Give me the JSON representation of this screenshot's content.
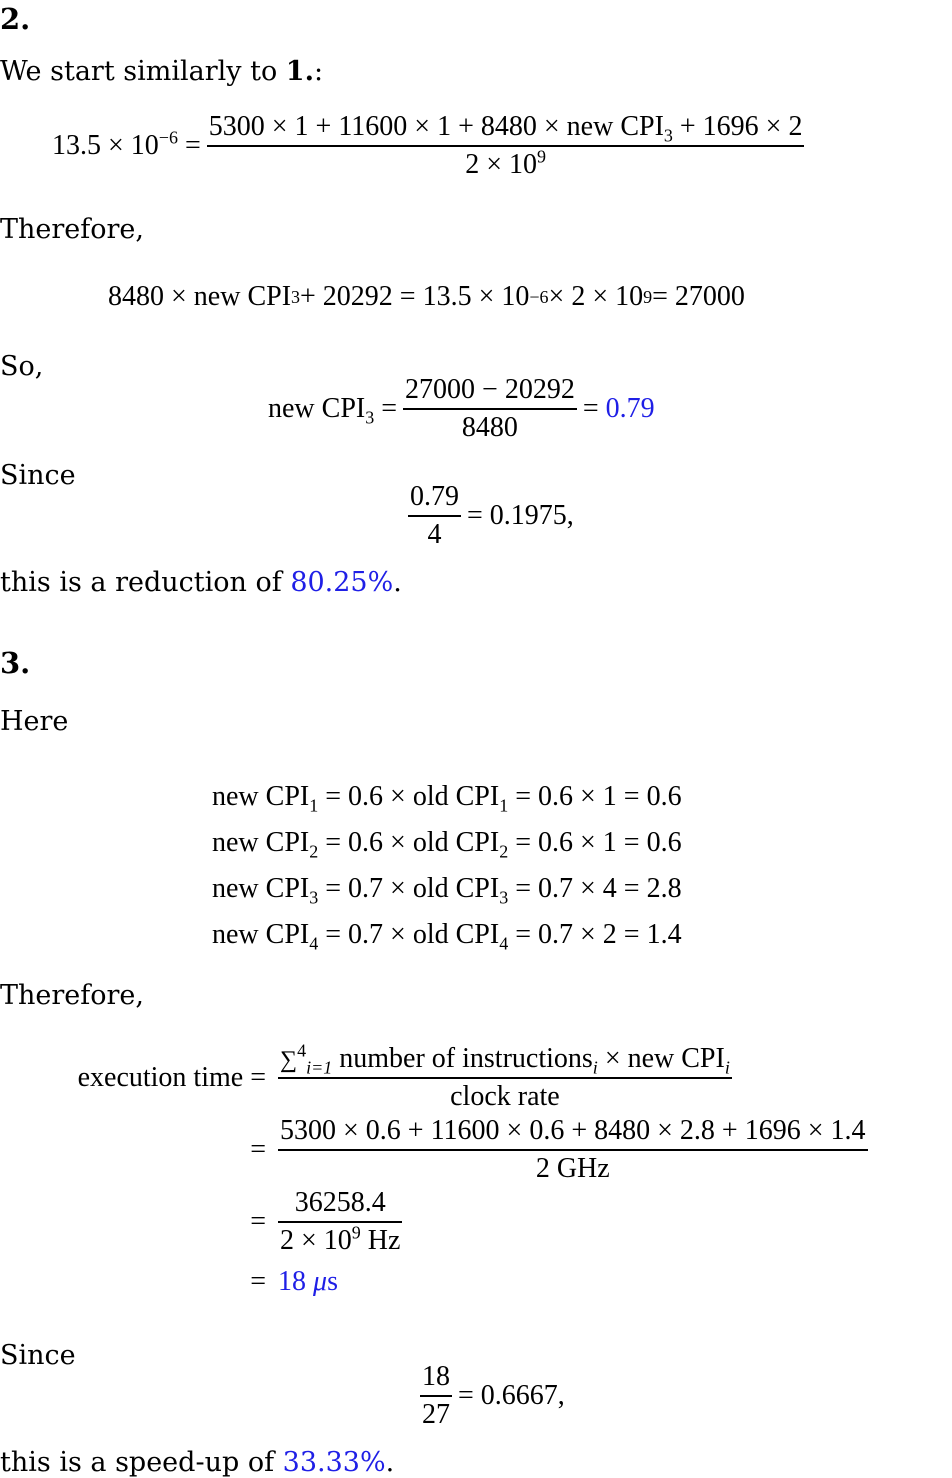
{
  "sections": [
    {
      "heading": "2.",
      "intro": "We start similarly to",
      "intro_ref": "1.",
      "intro_tail": ":",
      "eq1_lhs": "13.5 × 10",
      "eq1_lhs_exp": "−6",
      "eq1_num": "5300 × 1 + 11600 × 1 + 8480 × new CPI",
      "eq1_num_sub": "3",
      "eq1_num_tail": " + 1696 × 2",
      "eq1_den": "2 × 10",
      "eq1_den_exp": "9",
      "therefore": "Therefore,",
      "eq2_a": "8480 × new CPI",
      "eq2_a_sub": "3",
      "eq2_b": " + 20292 = 13.5 × 10",
      "eq2_b_exp": "−6",
      "eq2_c": " × 2 × 10",
      "eq2_c_exp": "9",
      "eq2_d": " = 27000",
      "so": "So,",
      "eq3_lhs": "new CPI",
      "eq3_lhs_sub": "3",
      "eq3_num": "27000 − 20292",
      "eq3_den": "8480",
      "eq3_result": "0.79",
      "since": "Since",
      "eq4_num": "0.79",
      "eq4_den": "4",
      "eq4_rhs": "= 0.1975,",
      "conclusion_pre": "this is a reduction of",
      "conclusion_value": "80.25%",
      "conclusion_post": "."
    },
    {
      "heading": "3.",
      "here": "Here",
      "cpi_rows": [
        {
          "sub": "1",
          "factor": "0.6",
          "old": "1",
          "result": "0.6"
        },
        {
          "sub": "2",
          "factor": "0.6",
          "old": "1",
          "result": "0.6"
        },
        {
          "sub": "3",
          "factor": "0.7",
          "old": "4",
          "result": "2.8"
        },
        {
          "sub": "4",
          "factor": "0.7",
          "old": "2",
          "result": "1.4"
        }
      ],
      "therefore": "Therefore,",
      "exec_lhs": "execution time",
      "exec_num_sum": "∑",
      "exec_num_sum_sup": "4",
      "exec_num_sum_sub": "i=1",
      "exec_num_text": "number of instructions",
      "exec_num_text_sub": "i",
      "exec_num_tail": " × new CPI",
      "exec_num_tail_sub": "i",
      "exec_den": "clock rate",
      "exec_line2_num": "5300 × 0.6 + 11600 × 0.6 + 8480 × 2.8 + 1696 × 1.4",
      "exec_line2_den": "2 GHz",
      "exec_line3_num": "36258.4",
      "exec_line3_den": "2 × 10",
      "exec_line3_den_exp": "9",
      "exec_line3_den_tail": " Hz",
      "exec_result_num": "18",
      "exec_result_unit": "μ",
      "exec_result_unit_tail": "s",
      "since": "Since",
      "ratio_num": "18",
      "ratio_den": "27",
      "ratio_rhs": "= 0.6667,",
      "conclusion_pre": "this is a speed-up of",
      "conclusion_value": "33.33%",
      "conclusion_post": "."
    }
  ],
  "colors": {
    "highlight": "#1f1fe6",
    "text": "#000000"
  }
}
